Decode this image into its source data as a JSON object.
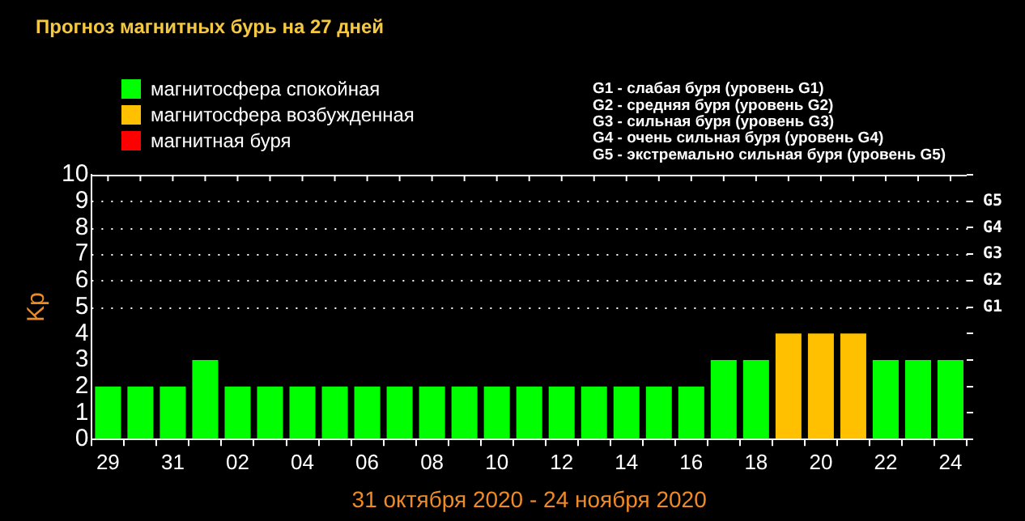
{
  "chart_data": {
    "type": "bar",
    "title": "Прогноз магнитных бурь на 27 дней",
    "xlabel": "31 октября 2020 - 24 ноября 2020",
    "ylabel": "Kp",
    "categories": [
      "29",
      null,
      "31",
      null,
      "02",
      null,
      "04",
      null,
      "06",
      null,
      "08",
      null,
      "10",
      null,
      "12",
      null,
      "14",
      null,
      "16",
      null,
      "18",
      null,
      "20",
      null,
      "22",
      null,
      "24"
    ],
    "series": [
      {
        "name": "магнитосфера спокойная",
        "color": "#00ff00",
        "values": [
          2,
          2,
          2,
          3,
          2,
          2,
          2,
          2,
          2,
          2,
          2,
          2,
          2,
          2,
          2,
          2,
          2,
          2,
          2,
          3,
          3,
          null,
          null,
          null,
          3,
          3,
          3
        ]
      },
      {
        "name": "магнитосфера возбужденная",
        "color": "#ffc000",
        "values": [
          null,
          null,
          null,
          null,
          null,
          null,
          null,
          null,
          null,
          null,
          null,
          null,
          null,
          null,
          null,
          null,
          null,
          null,
          null,
          null,
          null,
          4,
          4,
          4,
          null,
          null,
          null
        ]
      },
      {
        "name": "магнитная буря",
        "color": "#ff0000",
        "values": [
          null,
          null,
          null,
          null,
          null,
          null,
          null,
          null,
          null,
          null,
          null,
          null,
          null,
          null,
          null,
          null,
          null,
          null,
          null,
          null,
          null,
          null,
          null,
          null,
          null,
          null,
          null
        ]
      }
    ],
    "ylim": [
      0,
      10
    ],
    "yticks": [
      0,
      1,
      2,
      3,
      4,
      5,
      6,
      7,
      8,
      9,
      10
    ],
    "ref_lines": [
      {
        "axis": "y",
        "value": 5,
        "label": "G1",
        "line_style": "dotted"
      },
      {
        "axis": "y",
        "value": 6,
        "label": "G2",
        "line_style": "dotted"
      },
      {
        "axis": "y",
        "value": 7,
        "label": "G3",
        "line_style": "dotted"
      },
      {
        "axis": "y",
        "value": 8,
        "label": "G4",
        "line_style": "dotted"
      },
      {
        "axis": "y",
        "value": 9,
        "label": "G5",
        "line_style": "dotted"
      }
    ],
    "legend": "top left",
    "annotations": [
      "G1 - слабая буря (уровень G1)",
      "G2 - средняя буря (уровень G2)",
      "G3 - сильная буря (уровень G3)",
      "G4 - очень сильная буря (уровень G4)",
      "G5 - экстремально сильная буря (уровень G5)"
    ]
  }
}
